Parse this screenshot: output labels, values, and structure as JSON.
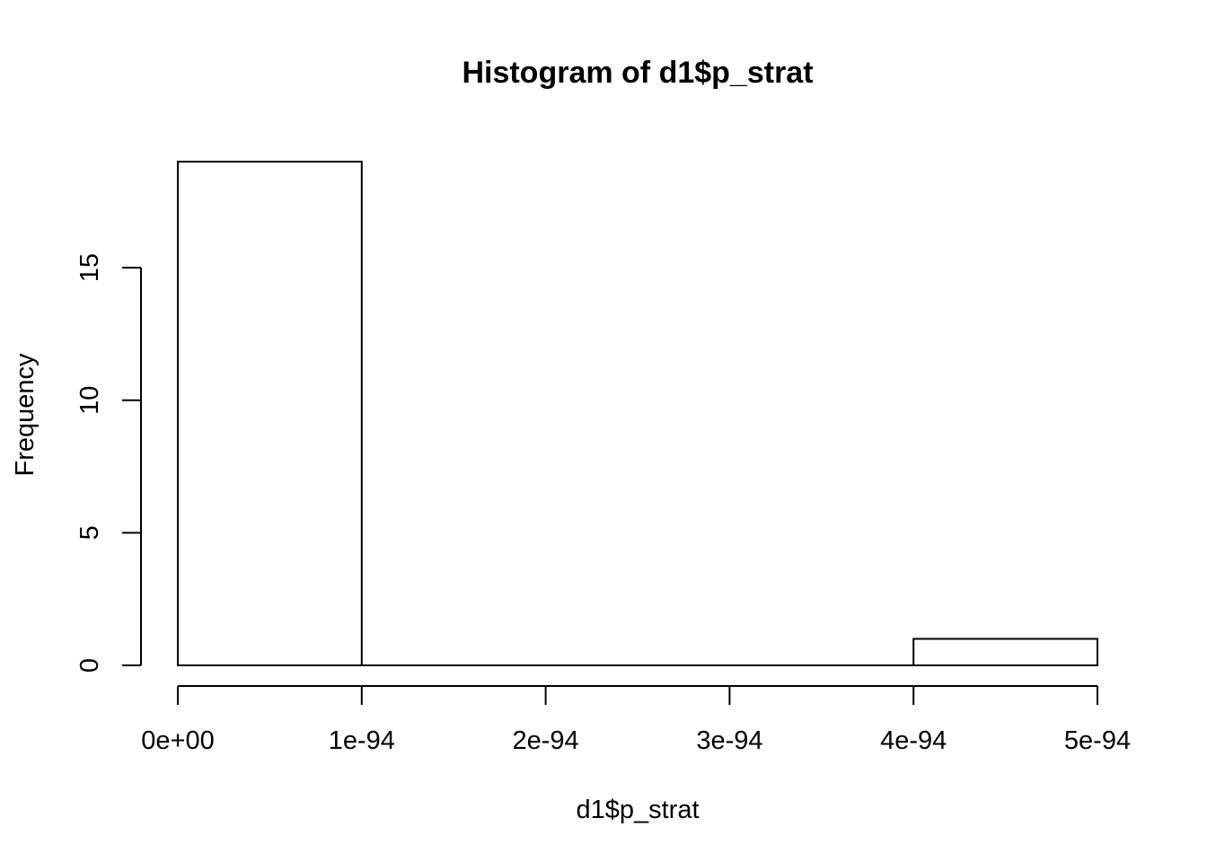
{
  "chart_data": {
    "type": "bar",
    "title": "Histogram of d1$p_strat",
    "xlabel": "d1$p_strat",
    "ylabel": "Frequency",
    "bins": [
      {
        "from": 0,
        "to": 1e-94,
        "count": 19
      },
      {
        "from": 1e-94,
        "to": 2e-94,
        "count": 0
      },
      {
        "from": 2e-94,
        "to": 3e-94,
        "count": 0
      },
      {
        "from": 3e-94,
        "to": 4e-94,
        "count": 0
      },
      {
        "from": 4e-94,
        "to": 5e-94,
        "count": 1
      }
    ],
    "x_ticks": [
      {
        "value": 0,
        "label": "0e+00"
      },
      {
        "value": 1e-94,
        "label": "1e-94"
      },
      {
        "value": 2e-94,
        "label": "2e-94"
      },
      {
        "value": 3e-94,
        "label": "3e-94"
      },
      {
        "value": 4e-94,
        "label": "4e-94"
      },
      {
        "value": 5e-94,
        "label": "5e-94"
      }
    ],
    "y_ticks": [
      {
        "value": 0,
        "label": "0"
      },
      {
        "value": 5,
        "label": "5"
      },
      {
        "value": 10,
        "label": "10"
      },
      {
        "value": 15,
        "label": "15"
      }
    ],
    "xlim": [
      0,
      5e-94
    ],
    "ylim": [
      0,
      19
    ],
    "grid": false,
    "legend": "none",
    "bar_fill": "#ffffff",
    "line_color": "#000000"
  }
}
